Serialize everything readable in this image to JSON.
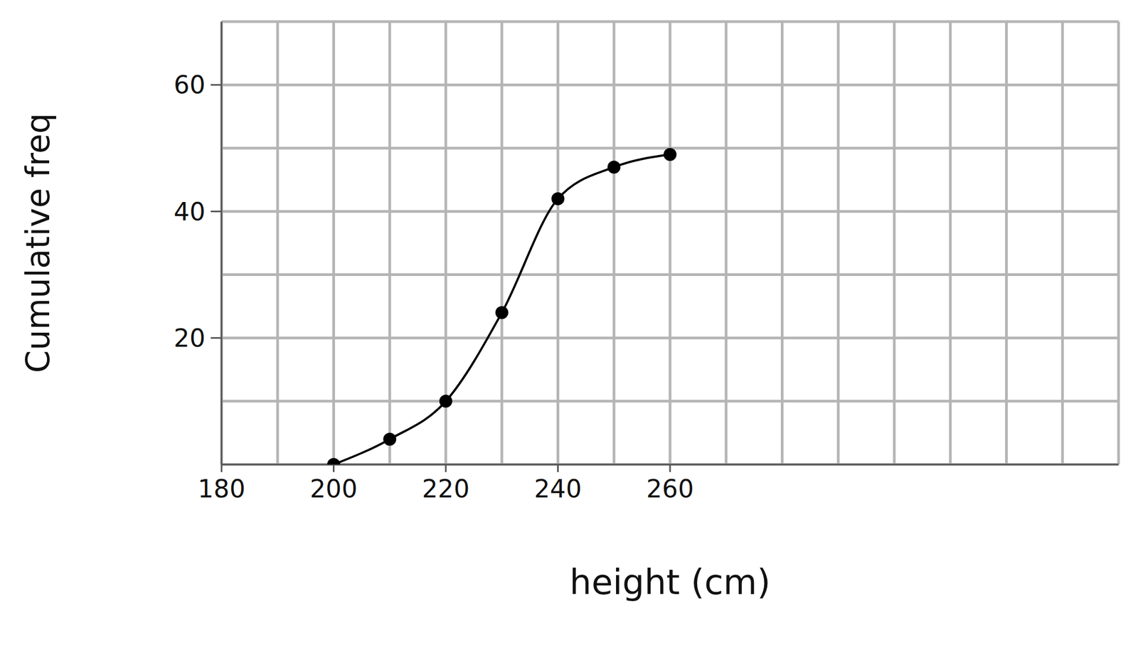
{
  "chart_data": {
    "type": "line",
    "x_label": "height (cm)",
    "y_label": "Cumulative freq",
    "x": [
      200,
      210,
      220,
      230,
      240,
      250,
      260
    ],
    "values": [
      0,
      4,
      10,
      24,
      42,
      47,
      49
    ],
    "color": "#000000",
    "xlim": [
      180,
      340
    ],
    "xticks": [
      180,
      200,
      220,
      240,
      260
    ],
    "ylim": [
      0,
      70
    ],
    "yticks": [
      20,
      40,
      60
    ],
    "grid": true,
    "marker": "circle",
    "line_style": "solid"
  }
}
